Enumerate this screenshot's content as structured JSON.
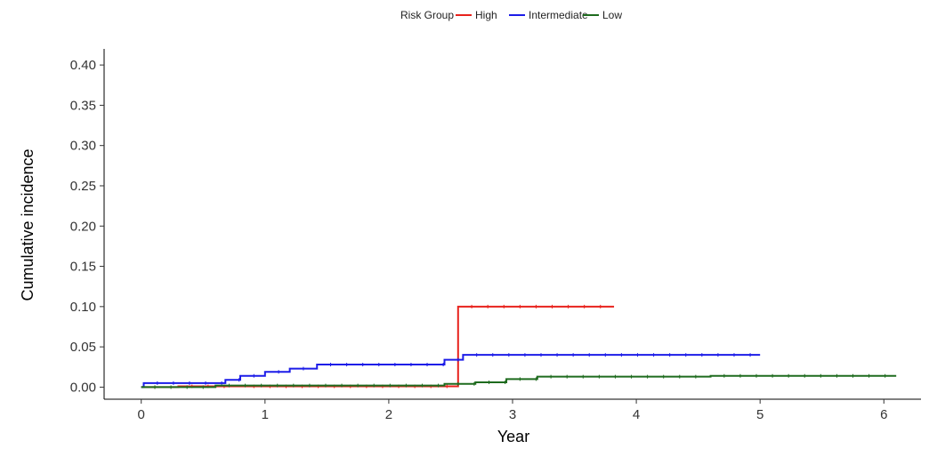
{
  "chart_data": {
    "type": "line",
    "step": true,
    "title": "",
    "xlabel": "Year",
    "ylabel": "Cumulative incidence",
    "xlim": [
      -0.3,
      6.3
    ],
    "ylim": [
      -0.015,
      0.42
    ],
    "xticks": [
      0,
      1,
      2,
      3,
      4,
      5,
      6
    ],
    "xtick_labels": [
      "0",
      "1",
      "2",
      "3",
      "4",
      "5",
      "6"
    ],
    "yticks": [
      0.0,
      0.05,
      0.1,
      0.15,
      0.2,
      0.25,
      0.3,
      0.35,
      0.4
    ],
    "ytick_labels": [
      "0.00",
      "0.05",
      "0.10",
      "0.15",
      "0.20",
      "0.25",
      "0.30",
      "0.35",
      "0.40"
    ],
    "grid": false,
    "legend": {
      "title": "Risk Group",
      "placement": "top-center",
      "orientation": "horizontal"
    },
    "series": [
      {
        "name": "High",
        "color": "#E8221C",
        "x": [
          0,
          0.2,
          0.3,
          0.8,
          2.56,
          2.56,
          3.82
        ],
        "y": [
          0,
          0.0,
          0.001,
          0.001,
          0.001,
          0.1,
          0.1
        ]
      },
      {
        "name": "Intermediate",
        "color": "#1C1CE8",
        "x": [
          0,
          0.02,
          0.68,
          0.8,
          1.0,
          1.2,
          1.42,
          2.45,
          2.6,
          5.0
        ],
        "y": [
          0,
          0.005,
          0.009,
          0.014,
          0.019,
          0.023,
          0.028,
          0.034,
          0.04,
          0.04
        ]
      },
      {
        "name": "Low",
        "color": "#1E6B1E",
        "x": [
          0,
          0.6,
          2.45,
          2.7,
          2.95,
          3.2,
          4.6,
          6.1
        ],
        "y": [
          0,
          0.002,
          0.004,
          0.006,
          0.01,
          0.013,
          0.014,
          0.014
        ]
      }
    ]
  }
}
